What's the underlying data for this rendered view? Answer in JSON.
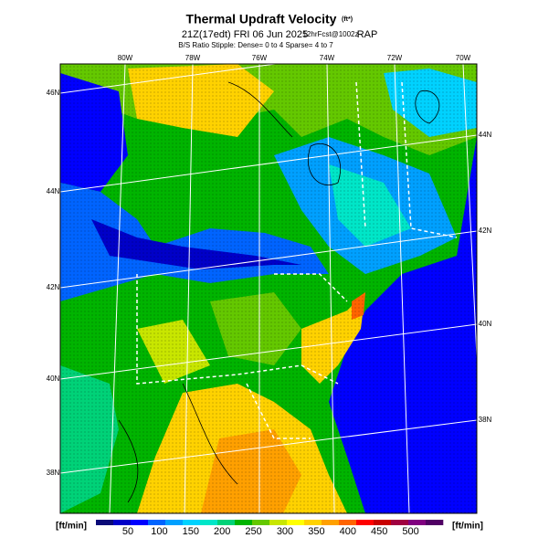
{
  "header": {
    "title": "Thermal Updraft Velocity",
    "title_unit": "(ft*)",
    "subtitle": "21Z(17edt) FRI 06 Jun 2025",
    "forecast": "12hrFcst@1002z",
    "model": "RAP",
    "stipple_note": "B/S Ratio Stipple: Dense= 0 to 4 Sparse= 4 to 7"
  },
  "map": {
    "longitude_labels": [
      "80W",
      "78W",
      "76W",
      "74W",
      "72W",
      "70W"
    ],
    "latitude_labels_left": [
      "46N",
      "44N",
      "42N",
      "40N",
      "38N"
    ],
    "latitude_labels_right": [
      "44N",
      "42N",
      "40N",
      "38N"
    ]
  },
  "colorbar": {
    "unit_left": "[ft/min]",
    "unit_right": "[ft/min]",
    "ticks": [
      50,
      100,
      150,
      200,
      250,
      300,
      350,
      400,
      450,
      500
    ],
    "colors": [
      "#0a0a78",
      "#0000c8",
      "#0000ff",
      "#0064ff",
      "#00a0ff",
      "#00d2ff",
      "#00e6c8",
      "#00d278",
      "#00b400",
      "#64c800",
      "#c8e600",
      "#ffff00",
      "#ffd200",
      "#ffa000",
      "#ff6400",
      "#ff0000",
      "#c80000",
      "#a00040",
      "#800080",
      "#500064"
    ]
  }
}
